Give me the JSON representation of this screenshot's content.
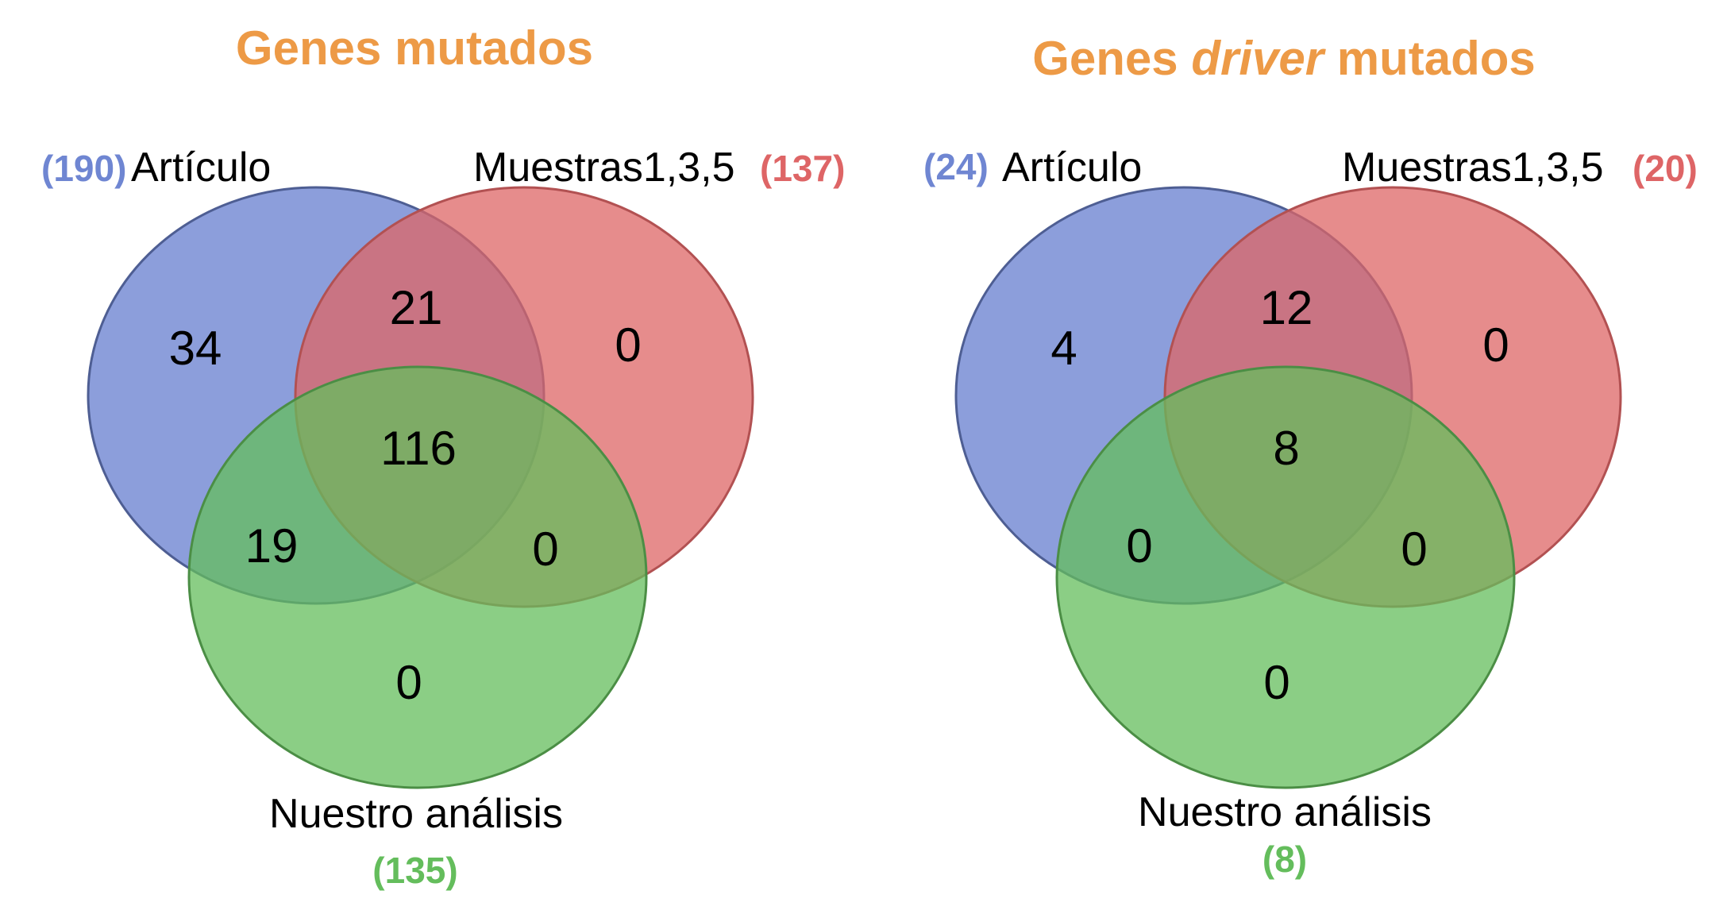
{
  "colors": {
    "title": "#ED9A46",
    "set_a": "#6F86D2",
    "set_b": "#DE6566",
    "set_c": "#64BD5C",
    "text": "#000000"
  },
  "diagrams": [
    {
      "title_pre": "Genes ",
      "title_em": "",
      "title_post": "mutados",
      "set_a": {
        "label": "Artículo",
        "count": "(190)"
      },
      "set_b": {
        "label": "Muestras1,3,5",
        "count": "(137)"
      },
      "set_c": {
        "label": "Nuestro análisis",
        "count": "(135)"
      },
      "regions": {
        "a_only": "34",
        "ab": "21",
        "b_only": "0",
        "abc": "116",
        "ac": "19",
        "bc": "0",
        "c_only": "0"
      }
    },
    {
      "title_pre": "Genes ",
      "title_em": "driver",
      "title_post": " mutados",
      "set_a": {
        "label": "Artículo",
        "count": "(24)"
      },
      "set_b": {
        "label": "Muestras1,3,5",
        "count": "(20)"
      },
      "set_c": {
        "label": "Nuestro análisis",
        "count": "(8)"
      },
      "regions": {
        "a_only": "4",
        "ab": "12",
        "b_only": "0",
        "abc": "8",
        "ac": "0",
        "bc": "0",
        "c_only": "0"
      }
    }
  ]
}
